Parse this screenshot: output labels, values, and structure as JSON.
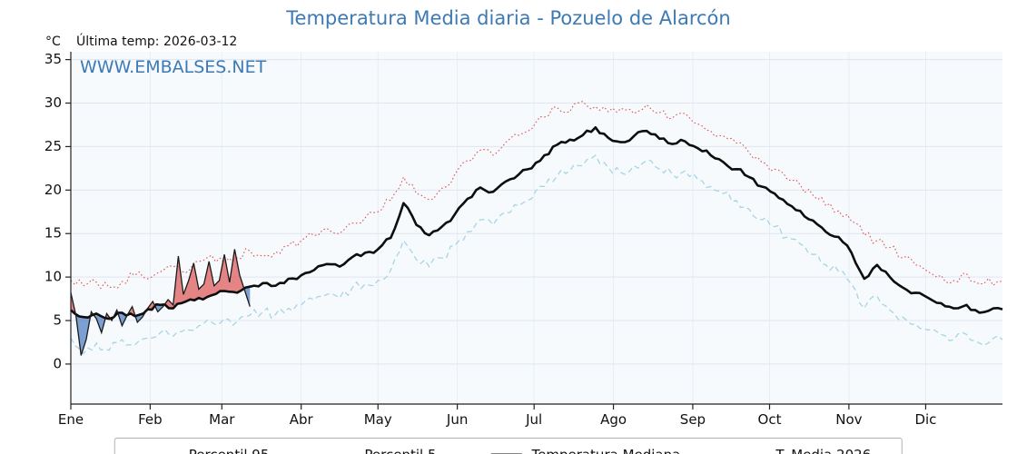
{
  "title": "Temperatura Media diaria - Pozuelo de Alarcón",
  "unit_label": "°C",
  "last_temp_label": "Última temp: 2026-03-12",
  "watermark": "WWW.EMBALSES.NET",
  "chart_data": {
    "type": "line",
    "title": "Temperatura Media diaria - Pozuelo de Alarcón",
    "xlabel": "",
    "ylabel": "°C",
    "plot_bg": "#f7fafd",
    "grid": true,
    "legend_position": "bottom",
    "y_axis": {
      "ticks": [
        0,
        5,
        10,
        15,
        20,
        25,
        30,
        35
      ],
      "range": [
        -4.6,
        35.9
      ],
      "unit": "°C"
    },
    "x_axis": {
      "tick_labels": [
        "Ene",
        "Feb",
        "Mar",
        "Abr",
        "May",
        "Jun",
        "Jul",
        "Ago",
        "Sep",
        "Oct",
        "Nov",
        "Dic"
      ],
      "month_start_days": [
        1,
        32,
        60,
        91,
        121,
        152,
        182,
        213,
        244,
        274,
        305,
        335
      ],
      "day_range": [
        1,
        365
      ]
    },
    "series": [
      {
        "name": "Percentil 95",
        "color": "#dd5555",
        "style": "dotted",
        "points": [
          [
            1,
            9.6
          ],
          [
            6,
            9.0
          ],
          [
            11,
            9.4
          ],
          [
            16,
            8.8
          ],
          [
            21,
            9.5
          ],
          [
            26,
            10.2
          ],
          [
            31,
            9.8
          ],
          [
            36,
            10.6
          ],
          [
            41,
            11.2
          ],
          [
            46,
            10.5
          ],
          [
            51,
            11.8
          ],
          [
            56,
            12.5
          ],
          [
            61,
            11.6
          ],
          [
            66,
            12.2
          ],
          [
            71,
            13.0
          ],
          [
            76,
            12.4
          ],
          [
            81,
            12.9
          ],
          [
            86,
            13.6
          ],
          [
            91,
            14.2
          ],
          [
            96,
            14.8
          ],
          [
            101,
            15.6
          ],
          [
            106,
            15.0
          ],
          [
            111,
            16.2
          ],
          [
            116,
            16.8
          ],
          [
            121,
            17.5
          ],
          [
            126,
            18.8
          ],
          [
            131,
            21.5
          ],
          [
            136,
            19.6
          ],
          [
            141,
            18.9
          ],
          [
            146,
            20.2
          ],
          [
            151,
            21.8
          ],
          [
            156,
            23.4
          ],
          [
            161,
            24.6
          ],
          [
            166,
            24.0
          ],
          [
            171,
            25.5
          ],
          [
            176,
            26.3
          ],
          [
            181,
            27.0
          ],
          [
            186,
            28.4
          ],
          [
            191,
            29.5
          ],
          [
            196,
            29.0
          ],
          [
            201,
            30.2
          ],
          [
            206,
            29.6
          ],
          [
            211,
            29.0
          ],
          [
            216,
            29.4
          ],
          [
            221,
            28.8
          ],
          [
            226,
            29.8
          ],
          [
            231,
            28.9
          ],
          [
            236,
            28.3
          ],
          [
            241,
            28.8
          ],
          [
            246,
            27.6
          ],
          [
            251,
            26.8
          ],
          [
            256,
            26.2
          ],
          [
            261,
            25.4
          ],
          [
            266,
            24.3
          ],
          [
            271,
            23.2
          ],
          [
            276,
            22.4
          ],
          [
            281,
            21.2
          ],
          [
            286,
            20.6
          ],
          [
            291,
            19.4
          ],
          [
            296,
            18.2
          ],
          [
            301,
            17.6
          ],
          [
            306,
            16.4
          ],
          [
            311,
            14.8
          ],
          [
            316,
            14.2
          ],
          [
            321,
            13.4
          ],
          [
            326,
            12.2
          ],
          [
            331,
            11.4
          ],
          [
            336,
            10.6
          ],
          [
            341,
            10.2
          ],
          [
            346,
            9.6
          ],
          [
            351,
            10.4
          ],
          [
            356,
            9.2
          ],
          [
            365,
            9.5
          ]
        ]
      },
      {
        "name": "Percentil 5",
        "color": "#a7d4e4",
        "style": "dashed",
        "points": [
          [
            1,
            3.0
          ],
          [
            6,
            1.2
          ],
          [
            11,
            2.4
          ],
          [
            16,
            1.6
          ],
          [
            21,
            2.8
          ],
          [
            26,
            2.2
          ],
          [
            31,
            3.0
          ],
          [
            36,
            3.6
          ],
          [
            41,
            3.2
          ],
          [
            46,
            4.0
          ],
          [
            51,
            4.4
          ],
          [
            56,
            4.8
          ],
          [
            61,
            5.2
          ],
          [
            66,
            4.9
          ],
          [
            71,
            5.6
          ],
          [
            76,
            6.0
          ],
          [
            81,
            5.7
          ],
          [
            86,
            6.4
          ],
          [
            91,
            6.8
          ],
          [
            96,
            7.4
          ],
          [
            101,
            8.0
          ],
          [
            106,
            7.6
          ],
          [
            111,
            8.8
          ],
          [
            116,
            9.2
          ],
          [
            121,
            9.6
          ],
          [
            126,
            10.8
          ],
          [
            131,
            14.2
          ],
          [
            136,
            12.0
          ],
          [
            141,
            11.2
          ],
          [
            146,
            12.2
          ],
          [
            151,
            13.6
          ],
          [
            156,
            15.2
          ],
          [
            161,
            16.6
          ],
          [
            166,
            16.0
          ],
          [
            171,
            17.4
          ],
          [
            176,
            18.2
          ],
          [
            181,
            19.0
          ],
          [
            186,
            20.4
          ],
          [
            191,
            21.6
          ],
          [
            196,
            22.2
          ],
          [
            201,
            22.8
          ],
          [
            206,
            24.0
          ],
          [
            211,
            22.6
          ],
          [
            216,
            22.0
          ],
          [
            221,
            22.8
          ],
          [
            226,
            23.4
          ],
          [
            231,
            22.4
          ],
          [
            236,
            21.8
          ],
          [
            241,
            22.2
          ],
          [
            246,
            21.2
          ],
          [
            251,
            20.4
          ],
          [
            256,
            19.6
          ],
          [
            261,
            18.8
          ],
          [
            266,
            17.8
          ],
          [
            271,
            16.6
          ],
          [
            276,
            15.8
          ],
          [
            281,
            14.6
          ],
          [
            286,
            13.8
          ],
          [
            291,
            12.6
          ],
          [
            296,
            11.4
          ],
          [
            301,
            10.6
          ],
          [
            306,
            9.2
          ],
          [
            311,
            6.4
          ],
          [
            316,
            7.8
          ],
          [
            321,
            6.2
          ],
          [
            326,
            5.4
          ],
          [
            331,
            4.6
          ],
          [
            336,
            3.9
          ],
          [
            341,
            3.4
          ],
          [
            346,
            2.8
          ],
          [
            351,
            3.4
          ],
          [
            356,
            2.4
          ],
          [
            365,
            2.8
          ]
        ]
      },
      {
        "name": "Temperatura Mediana",
        "color": "#0d0d0d",
        "style": "solid-thick",
        "points": [
          [
            1,
            6.2
          ],
          [
            6,
            5.4
          ],
          [
            11,
            5.8
          ],
          [
            16,
            5.2
          ],
          [
            21,
            5.9
          ],
          [
            26,
            5.5
          ],
          [
            31,
            6.3
          ],
          [
            36,
            6.8
          ],
          [
            41,
            6.4
          ],
          [
            46,
            7.2
          ],
          [
            51,
            7.6
          ],
          [
            56,
            7.9
          ],
          [
            61,
            8.4
          ],
          [
            66,
            8.2
          ],
          [
            71,
            8.9
          ],
          [
            76,
            9.3
          ],
          [
            81,
            9.0
          ],
          [
            86,
            9.8
          ],
          [
            91,
            10.2
          ],
          [
            96,
            10.8
          ],
          [
            101,
            11.5
          ],
          [
            106,
            11.2
          ],
          [
            111,
            12.3
          ],
          [
            116,
            12.8
          ],
          [
            121,
            13.2
          ],
          [
            126,
            14.5
          ],
          [
            131,
            18.5
          ],
          [
            136,
            16.0
          ],
          [
            141,
            14.8
          ],
          [
            146,
            15.8
          ],
          [
            151,
            17.2
          ],
          [
            156,
            19.0
          ],
          [
            161,
            20.3
          ],
          [
            166,
            19.8
          ],
          [
            171,
            21.0
          ],
          [
            176,
            21.8
          ],
          [
            181,
            22.5
          ],
          [
            186,
            24.0
          ],
          [
            191,
            25.2
          ],
          [
            196,
            25.8
          ],
          [
            201,
            26.3
          ],
          [
            206,
            27.2
          ],
          [
            211,
            26.0
          ],
          [
            216,
            25.5
          ],
          [
            221,
            26.2
          ],
          [
            226,
            26.8
          ],
          [
            231,
            25.9
          ],
          [
            236,
            25.3
          ],
          [
            241,
            25.6
          ],
          [
            246,
            24.8
          ],
          [
            251,
            24.0
          ],
          [
            256,
            23.2
          ],
          [
            261,
            22.4
          ],
          [
            266,
            21.5
          ],
          [
            271,
            20.4
          ],
          [
            276,
            19.6
          ],
          [
            281,
            18.4
          ],
          [
            286,
            17.6
          ],
          [
            291,
            16.5
          ],
          [
            296,
            15.2
          ],
          [
            301,
            14.6
          ],
          [
            306,
            12.8
          ],
          [
            311,
            9.8
          ],
          [
            316,
            11.4
          ],
          [
            321,
            10.0
          ],
          [
            326,
            8.8
          ],
          [
            331,
            8.2
          ],
          [
            336,
            7.6
          ],
          [
            341,
            7.0
          ],
          [
            346,
            6.4
          ],
          [
            351,
            6.8
          ],
          [
            356,
            5.9
          ],
          [
            365,
            6.3
          ]
        ]
      },
      {
        "name": "T. Media 2026",
        "color": "#1a1a1a",
        "style": "solid-thin",
        "fill_above": "#e06666",
        "fill_below": "#5b8ac5",
        "points": [
          [
            1,
            8.2
          ],
          [
            3,
            5.6
          ],
          [
            5,
            1.0
          ],
          [
            7,
            2.8
          ],
          [
            9,
            6.0
          ],
          [
            11,
            5.2
          ],
          [
            13,
            3.6
          ],
          [
            15,
            5.8
          ],
          [
            17,
            5.0
          ],
          [
            19,
            6.2
          ],
          [
            21,
            4.4
          ],
          [
            23,
            5.6
          ],
          [
            25,
            6.6
          ],
          [
            27,
            4.8
          ],
          [
            29,
            5.4
          ],
          [
            31,
            6.4
          ],
          [
            33,
            7.2
          ],
          [
            35,
            6.0
          ],
          [
            37,
            6.6
          ],
          [
            39,
            7.4
          ],
          [
            41,
            6.8
          ],
          [
            43,
            12.4
          ],
          [
            45,
            8.0
          ],
          [
            47,
            9.6
          ],
          [
            49,
            11.6
          ],
          [
            51,
            8.6
          ],
          [
            53,
            9.2
          ],
          [
            55,
            11.8
          ],
          [
            57,
            9.0
          ],
          [
            59,
            9.6
          ],
          [
            61,
            12.6
          ],
          [
            63,
            9.4
          ],
          [
            65,
            13.2
          ],
          [
            67,
            10.2
          ],
          [
            69,
            8.4
          ],
          [
            71,
            6.6
          ]
        ]
      }
    ],
    "legend": [
      "Percentil 95",
      "Percentil 5",
      "Temperatura Mediana",
      "T. Media 2026"
    ]
  }
}
